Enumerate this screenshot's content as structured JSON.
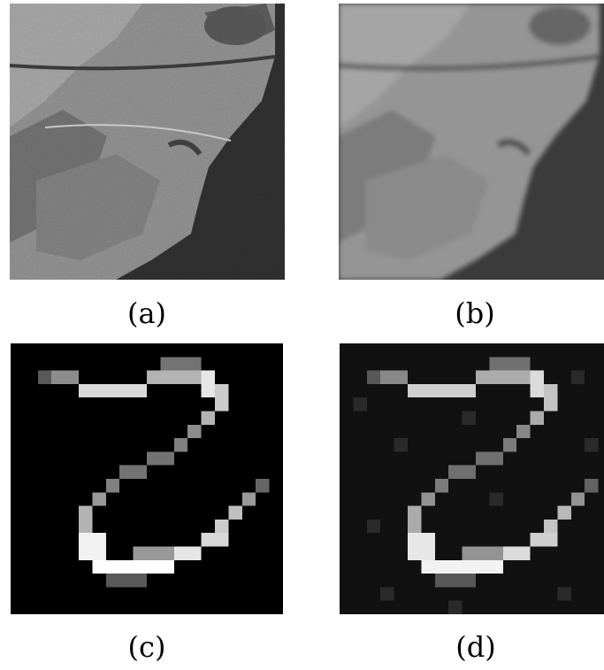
{
  "captions": {
    "a": "(a)",
    "b": "(b)",
    "c": "(c)",
    "d": "(d)"
  },
  "panels": [
    {
      "id": "a",
      "content": "aerial-photo-sharp"
    },
    {
      "id": "b",
      "content": "aerial-photo-blurred"
    },
    {
      "id": "c",
      "content": "handwritten-digit-clean"
    },
    {
      "id": "d",
      "content": "handwritten-digit-noisy"
    }
  ],
  "colors": {
    "sea": "#2e2e2e",
    "land": "#8a8a8a",
    "digit_bg": "#000000",
    "digit_fg": "#ffffff"
  }
}
